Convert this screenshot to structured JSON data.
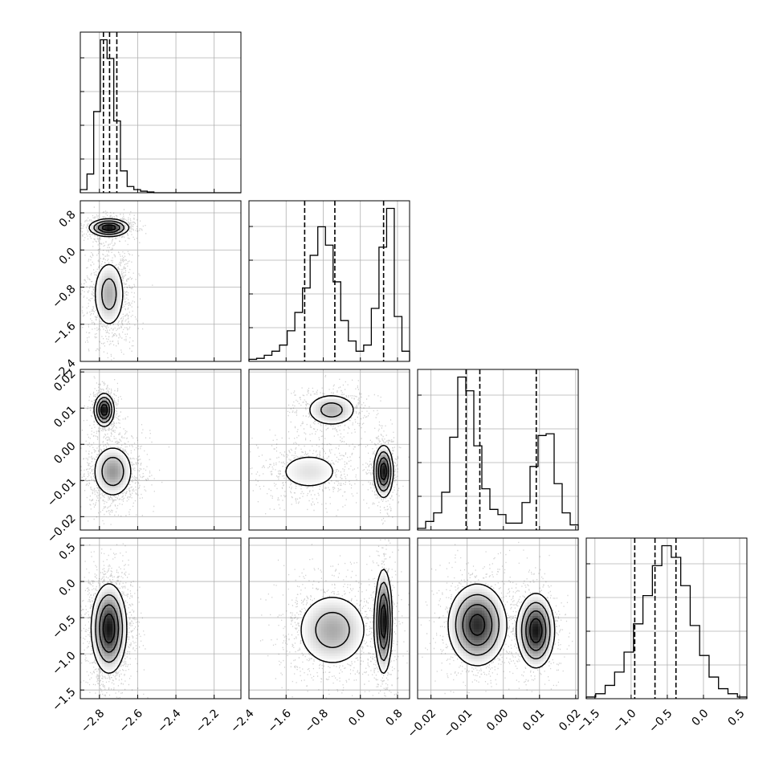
{
  "chart_data": {
    "type": "corner",
    "grid": true,
    "params": [
      {
        "range": [
          -2.9,
          -2.06
        ],
        "ticks": [
          -2.8,
          -2.6,
          -2.4,
          -2.2
        ],
        "tick_labels": [
          "−2.8",
          "−2.6",
          "−2.4",
          "−2.2"
        ],
        "quantiles": [
          -2.779,
          -2.747,
          -2.709
        ],
        "hist_bins": [
          2,
          12,
          52,
          98,
          86,
          46,
          14,
          4,
          2,
          1,
          0.5,
          0,
          0,
          0,
          0,
          0,
          0,
          0,
          0,
          0,
          0,
          0,
          0,
          0
        ]
      },
      {
        "range": [
          -2.4,
          1.06
        ],
        "ticks": [
          -2.4,
          -1.6,
          -0.8,
          0.0,
          0.8
        ],
        "tick_labels": [
          "−2.4",
          "−1.6",
          "−0.8",
          "0.0",
          "0.8"
        ],
        "quantiles": [
          -1.2,
          -0.55,
          0.5
        ],
        "hist_bins": [
          1,
          1.5,
          3,
          5,
          8,
          15,
          24,
          36,
          52,
          66,
          57,
          39,
          20,
          10,
          5,
          8,
          26,
          56,
          75,
          22,
          5
        ]
      },
      {
        "range": [
          -0.0237,
          0.0207
        ],
        "ticks": [
          -0.02,
          -0.01,
          0.0,
          0.01,
          0.02
        ],
        "tick_labels": [
          "−0.02",
          "−0.01",
          "0.00",
          "0.01",
          "0.02"
        ],
        "quantiles": [
          -0.0103,
          -0.0065,
          0.0091
        ],
        "hist_bins": [
          1,
          5,
          10,
          22,
          54,
          89,
          81,
          49,
          24,
          12,
          9,
          4,
          4,
          16,
          37,
          55,
          56,
          27,
          10,
          3
        ]
      },
      {
        "range": [
          -1.62,
          0.6
        ],
        "ticks": [
          -1.5,
          -1.0,
          -0.5,
          0.0,
          0.5
        ],
        "tick_labels": [
          "−1.5",
          "−1.0",
          "−0.5",
          "0.0",
          "0.5"
        ],
        "quantiles": [
          -0.95,
          -0.67,
          -0.38
        ],
        "hist_bins": [
          1,
          3,
          8,
          16,
          28,
          45,
          62,
          80,
          92,
          85,
          68,
          44,
          26,
          13,
          6,
          3,
          1
        ]
      }
    ],
    "blobs": {
      "1_0": [
        {
          "c": [
            -2.75,
            0.48
          ],
          "s": [
            0.05,
            0.09
          ],
          "w": 0.38
        },
        {
          "c": [
            -2.75,
            -0.95
          ],
          "s": [
            0.045,
            0.4
          ],
          "w": 0.62
        }
      ],
      "2_0": [
        {
          "c": [
            -2.775,
            0.0095
          ],
          "s": [
            0.025,
            0.0022
          ],
          "w": 0.35
        },
        {
          "c": [
            -2.73,
            -0.0075
          ],
          "s": [
            0.055,
            0.0038
          ],
          "w": 0.65
        }
      ],
      "2_1": [
        {
          "c": [
            -0.62,
            0.0095
          ],
          "s": [
            0.3,
            0.0025
          ],
          "w": 0.3
        },
        {
          "c": [
            -1.1,
            -0.0075
          ],
          "s": [
            0.45,
            0.0035
          ],
          "w": 0.35
        },
        {
          "c": [
            0.5,
            -0.0075
          ],
          "s": [
            0.1,
            0.0035
          ],
          "w": 0.35
        }
      ],
      "3_0": [
        {
          "c": [
            -2.75,
            -0.65
          ],
          "s": [
            0.045,
            0.3
          ],
          "w": 1.0
        }
      ],
      "3_1": [
        {
          "c": [
            -0.6,
            -0.67
          ],
          "s": [
            0.42,
            0.28
          ],
          "w": 0.62
        },
        {
          "c": [
            0.5,
            -0.55
          ],
          "s": [
            0.09,
            0.35
          ],
          "w": 0.38
        }
      ],
      "3_2": [
        {
          "c": [
            -0.0072,
            -0.6
          ],
          "s": [
            0.004,
            0.28
          ],
          "w": 0.62
        },
        {
          "c": [
            0.009,
            -0.68
          ],
          "s": [
            0.0025,
            0.25
          ],
          "w": 0.38
        }
      ]
    }
  }
}
